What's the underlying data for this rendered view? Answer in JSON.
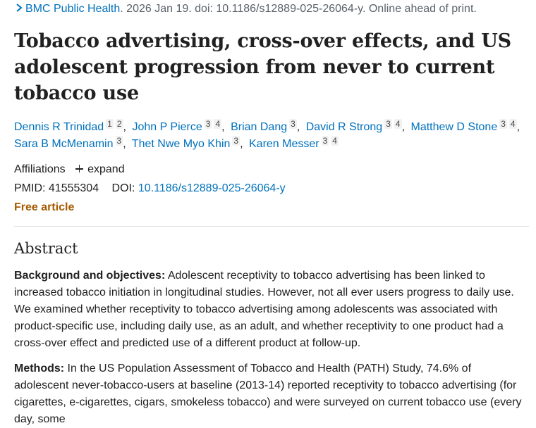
{
  "citation": {
    "journal": "BMC Public Health",
    "details": ". 2026 Jan 19. doi: 10.1186/s12889-025-26064-y. Online ahead of print."
  },
  "title": "Tobacco advertising, cross-over effects, and US adolescent progression from never to current tobacco use",
  "authors": [
    {
      "name": "Dennis R Trinidad",
      "sups": [
        "1",
        "2"
      ]
    },
    {
      "name": "John P Pierce",
      "sups": [
        "3",
        "4"
      ]
    },
    {
      "name": "Brian Dang",
      "sups": [
        "3"
      ]
    },
    {
      "name": "David R Strong",
      "sups": [
        "3",
        "4"
      ]
    },
    {
      "name": "Matthew D Stone",
      "sups": [
        "3",
        "4"
      ]
    },
    {
      "name": "Sara B McMenamin",
      "sups": [
        "3"
      ]
    },
    {
      "name": "Thet Nwe Myo Khin",
      "sups": [
        "3"
      ]
    },
    {
      "name": "Karen Messer",
      "sups": [
        "3",
        "4"
      ]
    }
  ],
  "affiliations": {
    "label": "Affiliations",
    "expand_label": "expand"
  },
  "ids": {
    "pmid_label": "PMID:",
    "pmid": "41555304",
    "doi_label": "DOI:",
    "doi": "10.1186/s12889-025-26064-y"
  },
  "free_article": "Free article",
  "abstract": {
    "heading": "Abstract",
    "background_label": "Background and objectives:",
    "background_text": " Adolescent receptivity to tobacco advertising has been linked to increased tobacco initiation in longitudinal studies. However, not all ever users progress to daily use. We examined whether receptivity to tobacco advertising among adolescents was associated with product-specific use, including daily use, as an adult, and whether receptivity to one product had a cross-over effect and predicted use of a different product at follow-up.",
    "methods_label": "Methods:",
    "methods_text": " In the US Population Assessment of Tobacco and Health (PATH) Study, 74.6% of adolescent never-tobacco-users at baseline (2013-14) reported receptivity to tobacco advertising (for cigarettes, e-cigarettes, cigars, smokeless tobacco) and were surveyed on current tobacco use (every day, some"
  }
}
